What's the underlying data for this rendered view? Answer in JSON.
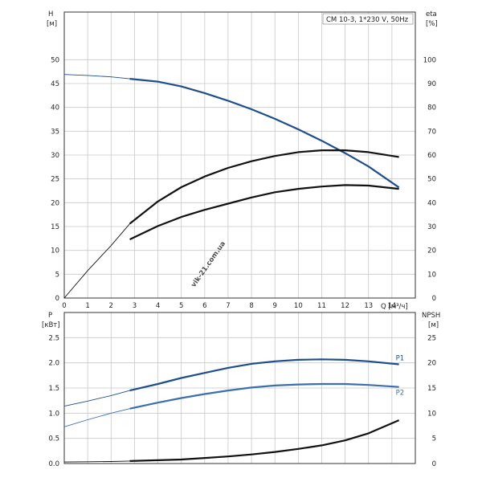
{
  "chart_data": [
    {
      "type": "line",
      "title": "CM 10-3, 1*230 V, 50Hz",
      "y_label": "H",
      "y_unit": "[м]",
      "y2_label": "eta",
      "y2_unit": "[%]",
      "x_label": "Q [м³/ч]",
      "xlim": [
        0,
        15
      ],
      "ylim": [
        0,
        60
      ],
      "y2lim": [
        0,
        120
      ],
      "x_ticks": [
        "0",
        "1",
        "2",
        "3",
        "4",
        "5",
        "6",
        "7",
        "8",
        "9",
        "10",
        "11",
        "12",
        "13",
        "14"
      ],
      "y_ticks": [
        "0",
        "5",
        "10",
        "15",
        "20",
        "25",
        "30",
        "35",
        "40",
        "45",
        "50"
      ],
      "y2_ticks": [
        "0",
        "10",
        "20",
        "30",
        "40",
        "50",
        "60",
        "70",
        "80",
        "90",
        "100"
      ],
      "grid": true,
      "series": [
        {
          "axis": "left",
          "color": "#1f4e8c",
          "points": [
            [
              0,
              46.9
            ],
            [
              1,
              46.7
            ],
            [
              2,
              46.4
            ],
            [
              2.8,
              46.0
            ],
            [
              4,
              45.4
            ],
            [
              5,
              44.4
            ],
            [
              6,
              43.0
            ],
            [
              7,
              41.4
            ],
            [
              8,
              39.6
            ],
            [
              9,
              37.6
            ],
            [
              10,
              35.4
            ],
            [
              11,
              33.0
            ],
            [
              12,
              30.4
            ],
            [
              13,
              27.6
            ],
            [
              14.3,
              23.2
            ]
          ]
        },
        {
          "axis": "right",
          "color": "#111111",
          "points": [
            [
              0,
              0
            ],
            [
              1,
              11.5
            ],
            [
              2,
              22.0
            ],
            [
              2.8,
              31.2
            ],
            [
              4,
              40.5
            ],
            [
              5,
              46.5
            ],
            [
              6,
              51.0
            ],
            [
              7,
              54.6
            ],
            [
              8,
              57.4
            ],
            [
              9,
              59.6
            ],
            [
              10,
              61.2
            ],
            [
              11,
              62.0
            ],
            [
              12,
              62.0
            ],
            [
              13,
              61.2
            ],
            [
              14.3,
              59.2
            ]
          ]
        },
        {
          "axis": "right",
          "color": "#111111",
          "points": [
            [
              2.8,
              24.6
            ],
            [
              4,
              30.2
            ],
            [
              5,
              34.0
            ],
            [
              6,
              37.0
            ],
            [
              7,
              39.6
            ],
            [
              8,
              42.2
            ],
            [
              9,
              44.4
            ],
            [
              10,
              45.8
            ],
            [
              11,
              46.8
            ],
            [
              12,
              47.4
            ],
            [
              13,
              47.2
            ],
            [
              14.3,
              45.8
            ]
          ]
        }
      ]
    },
    {
      "type": "line",
      "y_label": "P",
      "y_unit": "[кВт]",
      "y2_label": "NPSH",
      "y2_unit": "[м]",
      "ylim": [
        0,
        3
      ],
      "y2lim": [
        0,
        30
      ],
      "y_ticks": [
        "0.0",
        "0.5",
        "1.0",
        "1.5",
        "2.0",
        "2.5"
      ],
      "y2_ticks": [
        "0",
        "5",
        "10",
        "15",
        "20",
        "25"
      ],
      "grid": true,
      "series": [
        {
          "name": "P1",
          "axis": "left",
          "color": "#1f4e8c",
          "points": [
            [
              0,
              1.14
            ],
            [
              1,
              1.24
            ],
            [
              2,
              1.35
            ],
            [
              2.8,
              1.45
            ],
            [
              4,
              1.58
            ],
            [
              5,
              1.7
            ],
            [
              6,
              1.8
            ],
            [
              7,
              1.9
            ],
            [
              8,
              1.98
            ],
            [
              9,
              2.03
            ],
            [
              10,
              2.06
            ],
            [
              11,
              2.07
            ],
            [
              12,
              2.06
            ],
            [
              13,
              2.03
            ],
            [
              14.3,
              1.97
            ]
          ]
        },
        {
          "name": "P2",
          "axis": "left",
          "color": "#3a6fb0",
          "points": [
            [
              0,
              0.73
            ],
            [
              1,
              0.87
            ],
            [
              2,
              1.0
            ],
            [
              2.8,
              1.09
            ],
            [
              4,
              1.21
            ],
            [
              5,
              1.3
            ],
            [
              6,
              1.38
            ],
            [
              7,
              1.45
            ],
            [
              8,
              1.51
            ],
            [
              9,
              1.55
            ],
            [
              10,
              1.57
            ],
            [
              11,
              1.58
            ],
            [
              12,
              1.58
            ],
            [
              13,
              1.56
            ],
            [
              14.3,
              1.52
            ]
          ]
        },
        {
          "axis": "right",
          "color": "#111111",
          "points": [
            [
              0,
              0.3
            ],
            [
              1,
              0.35
            ],
            [
              2,
              0.4
            ],
            [
              2.8,
              0.5
            ],
            [
              4,
              0.65
            ],
            [
              5,
              0.8
            ],
            [
              6,
              1.1
            ],
            [
              7,
              1.4
            ],
            [
              8,
              1.8
            ],
            [
              9,
              2.3
            ],
            [
              10,
              2.9
            ],
            [
              11,
              3.6
            ],
            [
              12,
              4.6
            ],
            [
              13,
              6.0
            ],
            [
              14.3,
              8.6
            ]
          ]
        }
      ]
    }
  ],
  "watermark": "vik-21.com.ua"
}
